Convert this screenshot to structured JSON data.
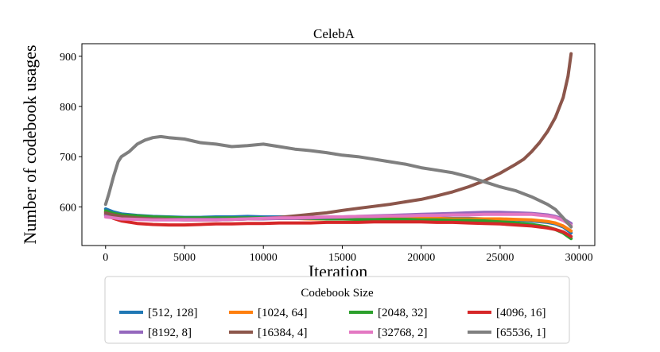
{
  "chart_data": {
    "type": "line",
    "title": "CelebA",
    "xlabel": "Iteration",
    "ylabel": "Number of codebook usages",
    "xlim": [
      -1500,
      31000
    ],
    "ylim": [
      523,
      925
    ],
    "xticks": [
      0,
      5000,
      10000,
      15000,
      20000,
      25000,
      30000
    ],
    "yticks": [
      600,
      700,
      800,
      900
    ],
    "grid": false,
    "legend": {
      "title": "Codebook Size",
      "placement": "bottom-center-outside",
      "ncol": 4
    },
    "series": [
      {
        "name": "[512, 128]",
        "color": "#1f77b4",
        "x": [
          0,
          500,
          1000,
          2000,
          3000,
          4000,
          5000,
          6000,
          7000,
          8000,
          9000,
          10000,
          11000,
          12000,
          13000,
          14000,
          15000,
          16000,
          17000,
          18000,
          19000,
          20000,
          21000,
          22000,
          23000,
          24000,
          25000,
          26000,
          27000,
          28000,
          28500,
          29000,
          29500
        ],
        "y": [
          596,
          590,
          586,
          583,
          581,
          580,
          579,
          579,
          580,
          580,
          581,
          580,
          580,
          580,
          579,
          579,
          578,
          578,
          578,
          579,
          579,
          578,
          578,
          577,
          577,
          576,
          575,
          574,
          572,
          569,
          566,
          560,
          548
        ]
      },
      {
        "name": "[1024, 64]",
        "color": "#ff7f0e",
        "x": [
          0,
          500,
          1000,
          2000,
          3000,
          4000,
          5000,
          6000,
          7000,
          8000,
          9000,
          10000,
          11000,
          12000,
          13000,
          14000,
          15000,
          16000,
          17000,
          18000,
          19000,
          20000,
          21000,
          22000,
          23000,
          24000,
          25000,
          26000,
          27000,
          28000,
          28500,
          29000,
          29500
        ],
        "y": [
          590,
          585,
          582,
          580,
          578,
          577,
          576,
          576,
          577,
          577,
          577,
          577,
          577,
          577,
          576,
          576,
          576,
          576,
          576,
          577,
          577,
          577,
          577,
          576,
          576,
          576,
          576,
          575,
          574,
          571,
          568,
          562,
          552
        ]
      },
      {
        "name": "[2048, 32]",
        "color": "#2ca02c",
        "x": [
          0,
          500,
          1000,
          2000,
          3000,
          4000,
          5000,
          6000,
          7000,
          8000,
          9000,
          10000,
          11000,
          12000,
          13000,
          14000,
          15000,
          16000,
          17000,
          18000,
          19000,
          20000,
          21000,
          22000,
          23000,
          24000,
          25000,
          26000,
          27000,
          28000,
          28500,
          29000,
          29500
        ],
        "y": [
          592,
          587,
          584,
          582,
          580,
          579,
          578,
          578,
          578,
          578,
          578,
          578,
          577,
          577,
          577,
          576,
          576,
          575,
          575,
          575,
          575,
          574,
          574,
          573,
          573,
          572,
          570,
          568,
          565,
          560,
          555,
          548,
          537
        ]
      },
      {
        "name": "[4096, 16]",
        "color": "#d62728",
        "x": [
          0,
          500,
          1000,
          2000,
          3000,
          4000,
          5000,
          6000,
          7000,
          8000,
          9000,
          10000,
          11000,
          12000,
          13000,
          14000,
          15000,
          16000,
          17000,
          18000,
          19000,
          20000,
          21000,
          22000,
          23000,
          24000,
          25000,
          26000,
          27000,
          28000,
          28500,
          29000,
          29500
        ],
        "y": [
          585,
          577,
          572,
          567,
          565,
          564,
          564,
          565,
          566,
          566,
          567,
          567,
          568,
          568,
          568,
          569,
          569,
          569,
          570,
          570,
          570,
          570,
          569,
          569,
          568,
          567,
          566,
          564,
          562,
          558,
          555,
          550,
          541
        ]
      },
      {
        "name": "[8192, 8]",
        "color": "#9467bd",
        "x": [
          0,
          500,
          1000,
          2000,
          3000,
          4000,
          5000,
          6000,
          7000,
          8000,
          9000,
          10000,
          11000,
          12000,
          13000,
          14000,
          15000,
          16000,
          17000,
          18000,
          19000,
          20000,
          21000,
          22000,
          23000,
          24000,
          25000,
          26000,
          27000,
          28000,
          28500,
          29000,
          29500
        ],
        "y": [
          583,
          581,
          579,
          577,
          576,
          575,
          575,
          575,
          575,
          575,
          576,
          576,
          577,
          577,
          578,
          579,
          580,
          581,
          582,
          583,
          584,
          585,
          586,
          587,
          588,
          589,
          589,
          588,
          587,
          584,
          581,
          576,
          567
        ]
      },
      {
        "name": "[16384, 4]",
        "color": "#8c564b",
        "x": [
          0,
          500,
          1000,
          2000,
          3000,
          4000,
          5000,
          6000,
          7000,
          8000,
          9000,
          10000,
          11000,
          12000,
          13000,
          14000,
          15000,
          16000,
          17000,
          18000,
          19000,
          20000,
          21000,
          22000,
          23000,
          24000,
          25000,
          26000,
          26500,
          27000,
          27500,
          28000,
          28500,
          29000,
          29300,
          29500
        ],
        "y": [
          588,
          584,
          581,
          578,
          576,
          575,
          574,
          574,
          574,
          575,
          576,
          577,
          579,
          582,
          585,
          588,
          593,
          597,
          601,
          605,
          610,
          615,
          622,
          630,
          640,
          652,
          667,
          685,
          695,
          710,
          728,
          750,
          778,
          818,
          860,
          905
        ]
      },
      {
        "name": "[32768, 2]",
        "color": "#e377c2",
        "x": [
          0,
          500,
          1000,
          2000,
          3000,
          4000,
          5000,
          6000,
          7000,
          8000,
          9000,
          10000,
          11000,
          12000,
          13000,
          14000,
          15000,
          16000,
          17000,
          18000,
          19000,
          20000,
          21000,
          22000,
          23000,
          24000,
          25000,
          26000,
          27000,
          28000,
          28500,
          29000,
          29500
        ],
        "y": [
          580,
          578,
          576,
          575,
          574,
          574,
          574,
          574,
          574,
          575,
          576,
          577,
          578,
          578,
          579,
          580,
          580,
          581,
          581,
          582,
          582,
          583,
          583,
          584,
          584,
          585,
          585,
          585,
          585,
          582,
          579,
          573,
          563
        ]
      },
      {
        "name": "[65536, 1]",
        "color": "#7f7f7f",
        "x": [
          0,
          200,
          500,
          800,
          1000,
          1500,
          2000,
          2500,
          3000,
          3500,
          4000,
          5000,
          6000,
          7000,
          8000,
          9000,
          10000,
          11000,
          12000,
          13000,
          14000,
          15000,
          16000,
          17000,
          18000,
          19000,
          20000,
          21000,
          22000,
          23000,
          24000,
          25000,
          26000,
          27000,
          28000,
          28500,
          29000,
          29500
        ],
        "y": [
          605,
          625,
          660,
          690,
          700,
          710,
          725,
          733,
          738,
          740,
          738,
          735,
          728,
          725,
          720,
          722,
          725,
          720,
          715,
          712,
          708,
          703,
          700,
          695,
          690,
          685,
          678,
          673,
          668,
          660,
          650,
          640,
          632,
          620,
          605,
          595,
          578,
          560
        ]
      }
    ]
  }
}
